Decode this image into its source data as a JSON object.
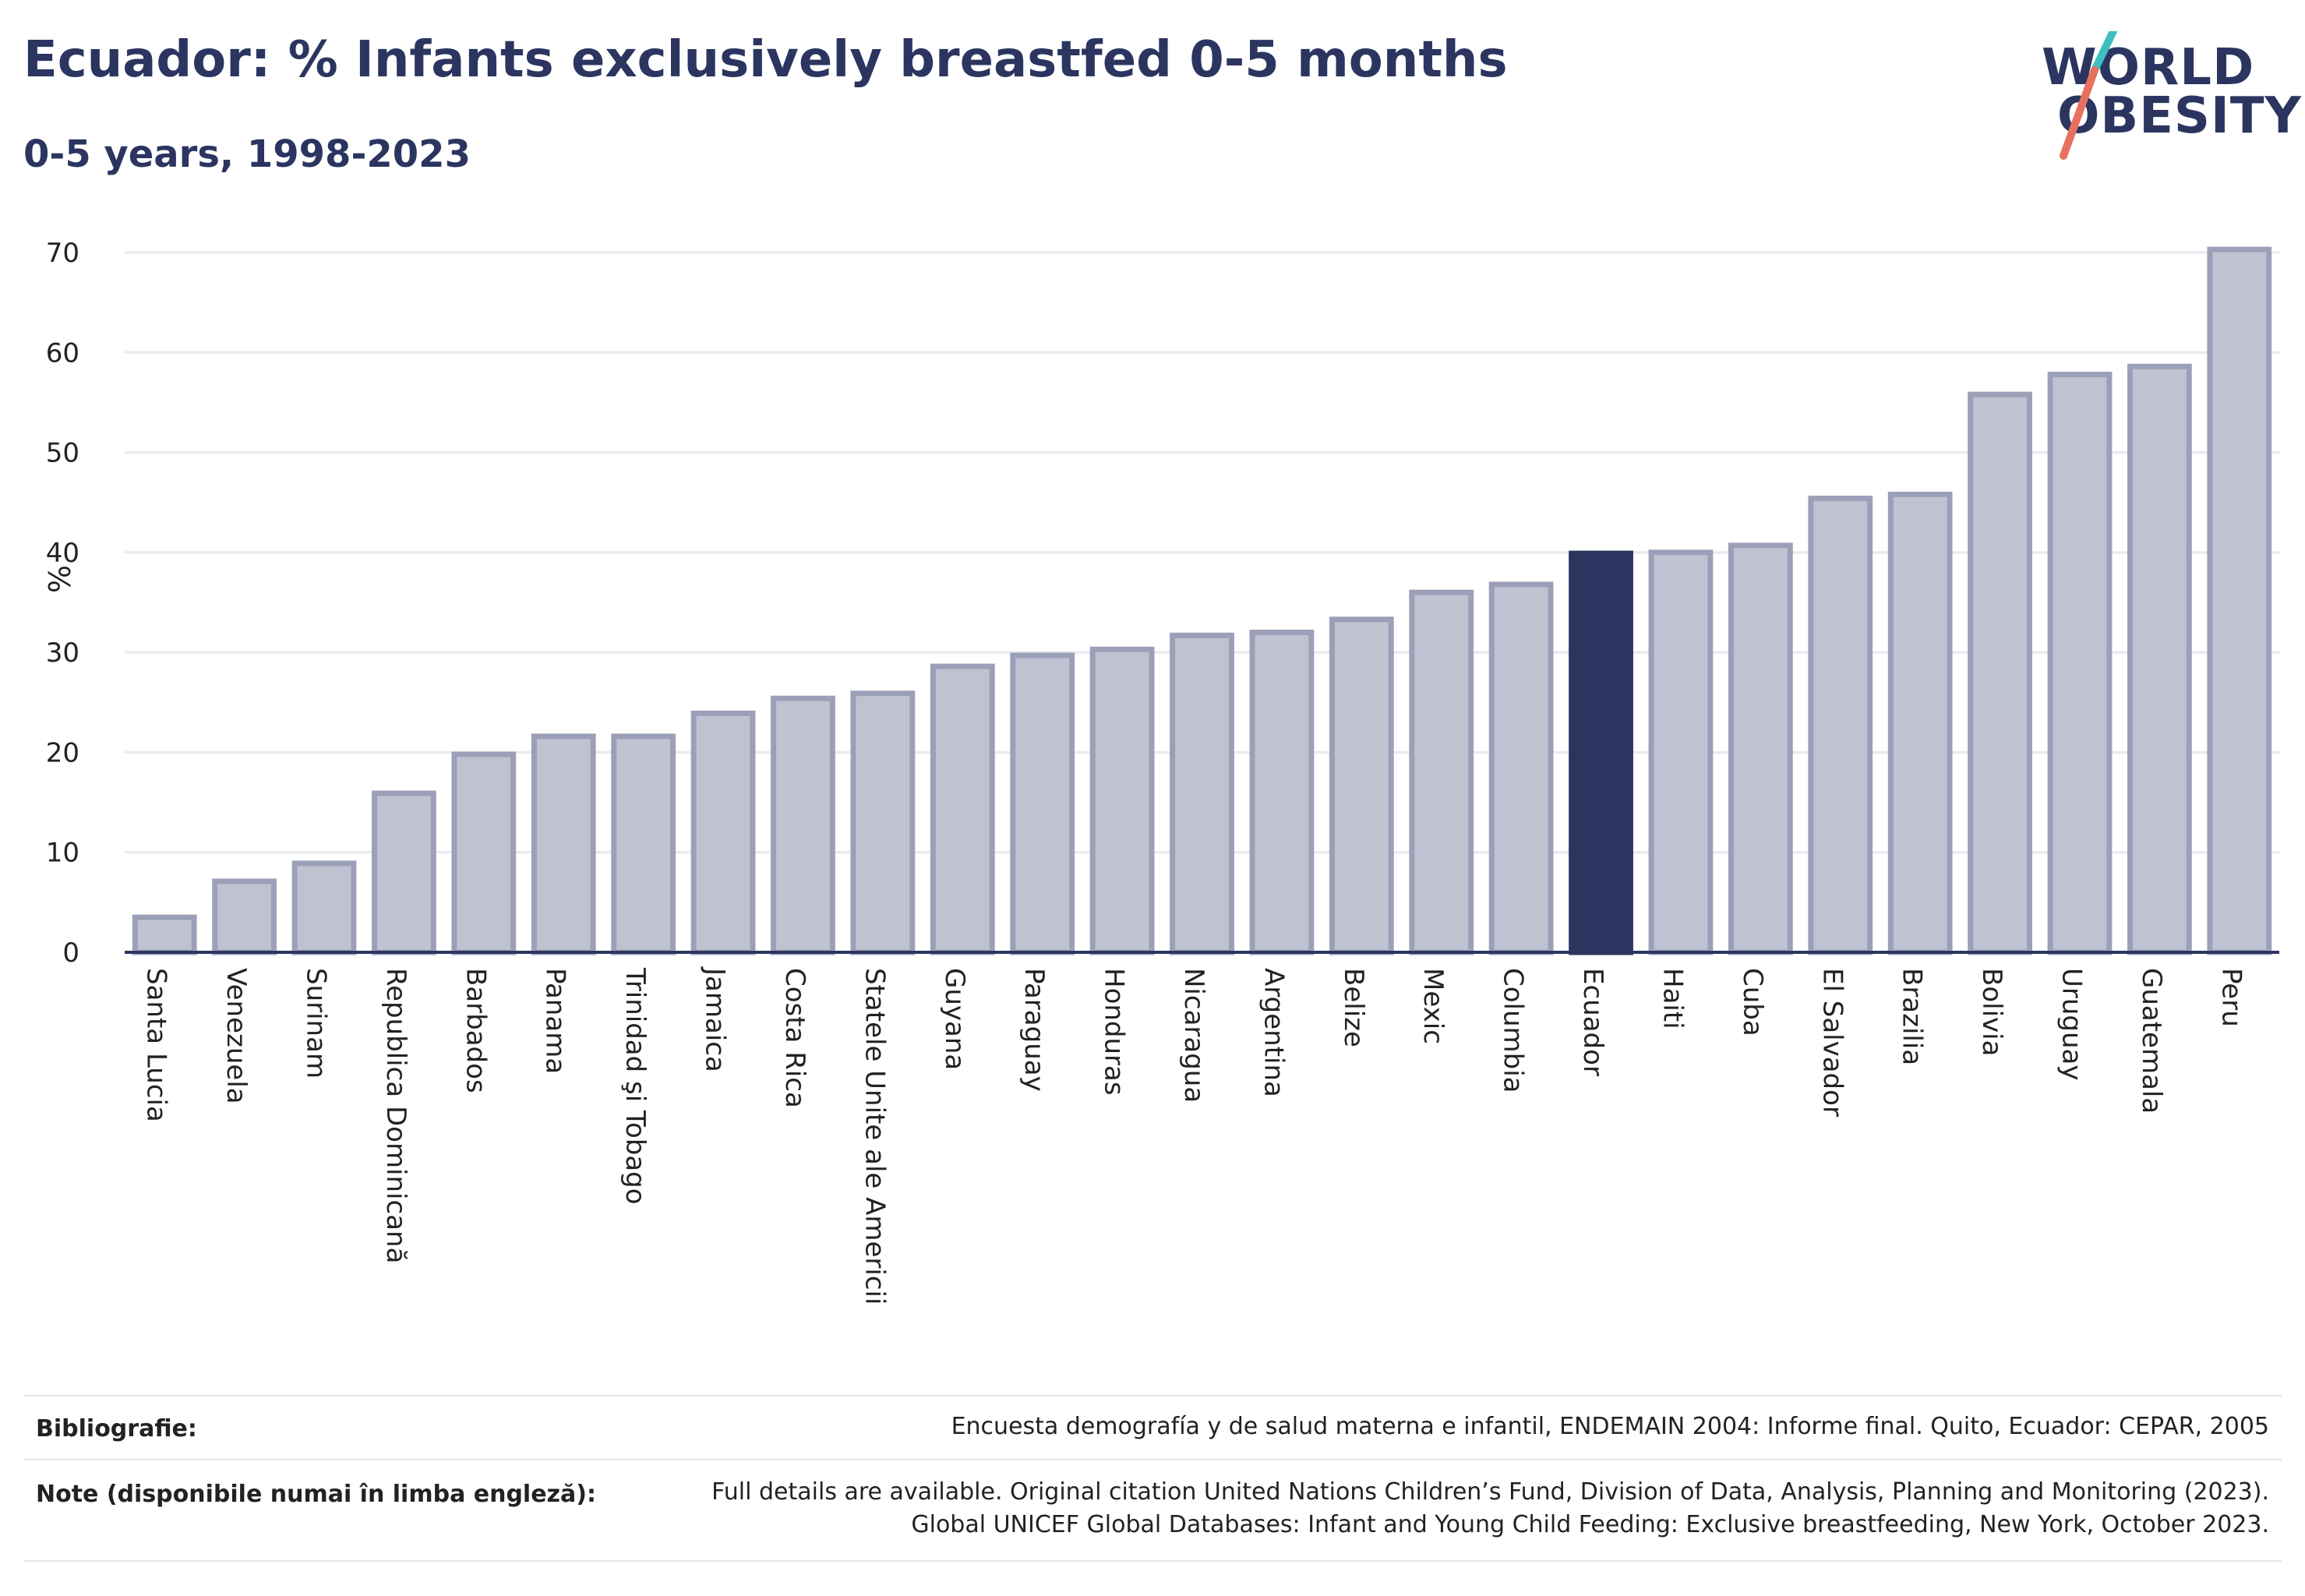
{
  "header": {
    "title": "Ecuador: % Infants exclusively breastfed 0-5 months",
    "subtitle": "0-5 years, 1998-2023"
  },
  "logo": {
    "line1": "WORLD",
    "line2": "OBESITY"
  },
  "colors": {
    "bar_default": "#bfc3d1",
    "bar_default_stroke": "#9ba0b8",
    "bar_highlight": "#2b3560",
    "grid": "#e8e8ee",
    "axis": "#2b3560",
    "logo_slash_top": "#3fbfbf",
    "logo_slash_bottom": "#e8705f"
  },
  "chart_data": {
    "type": "bar",
    "title": "Ecuador: % Infants exclusively breastfed 0-5 months",
    "subtitle": "0-5 years, 1998-2023",
    "xlabel": "",
    "ylabel": "%",
    "ylim": [
      0,
      70
    ],
    "yticks": [
      0,
      10,
      20,
      30,
      40,
      50,
      60,
      70
    ],
    "grid": true,
    "highlight": "Ecuador",
    "categories": [
      "Santa Lucia",
      "Venezuela",
      "Surinam",
      "Republica Dominicană",
      "Barbados",
      "Panama",
      "Trinidad şi Tobago",
      "Jamaica",
      "Costa Rica",
      "Statele Unite ale Americii",
      "Guyana",
      "Paraguay",
      "Honduras",
      "Nicaragua",
      "Argentina",
      "Belize",
      "Mexic",
      "Columbia",
      "Ecuador",
      "Haiti",
      "Cuba",
      "El Salvador",
      "Brazilia",
      "Bolivia",
      "Uruguay",
      "Guatemala",
      "Peru"
    ],
    "values": [
      3.5,
      7.1,
      8.9,
      15.9,
      19.8,
      21.6,
      21.6,
      23.9,
      25.4,
      25.9,
      28.6,
      29.7,
      30.3,
      31.7,
      32.0,
      33.3,
      36.0,
      36.8,
      39.9,
      40.0,
      40.7,
      45.4,
      45.8,
      55.8,
      57.8,
      58.6,
      70.3
    ]
  },
  "footer": {
    "bibliography_label": "Bibliografie:",
    "bibliography_text": "Encuesta demografía y de salud materna e infantil, ENDEMAIN 2004: Informe final. Quito, Ecuador: CEPAR, 2005",
    "notes_label": "Note (disponibile numai în limba engleză):",
    "notes_line1": "Full details are available. Original citation United Nations Children’s Fund, Division of Data, Analysis, Planning and Monitoring (2023).",
    "notes_line2": "Global UNICEF Global Databases: Infant and Young Child Feeding: Exclusive breastfeeding, New York, October 2023."
  }
}
